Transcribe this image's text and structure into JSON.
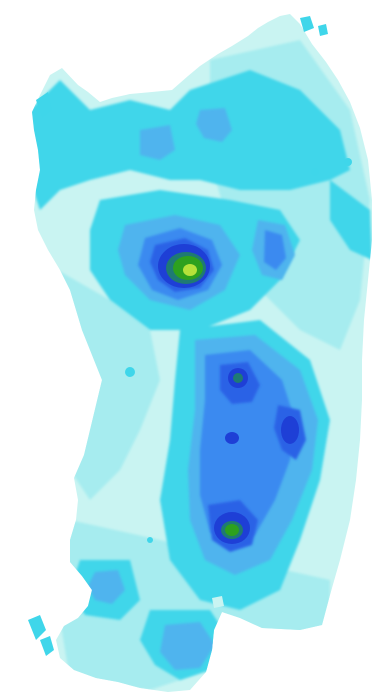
{
  "map": {
    "type": "contour-map",
    "region_shape": "island",
    "background_color": "#ffffff",
    "palette": {
      "lightest": "#c9f4f2",
      "light": "#a6ecef",
      "cyan": "#3fd6ea",
      "sky": "#4fb4ee",
      "blue": "#3a8af0",
      "deep_blue": "#2a62e6",
      "dark_blue": "#1e3fd6",
      "teal": "#1f7a74",
      "green": "#2da11e",
      "yellow_green": "#b5e23a"
    },
    "legend_visible": false,
    "labels_visible": false
  }
}
